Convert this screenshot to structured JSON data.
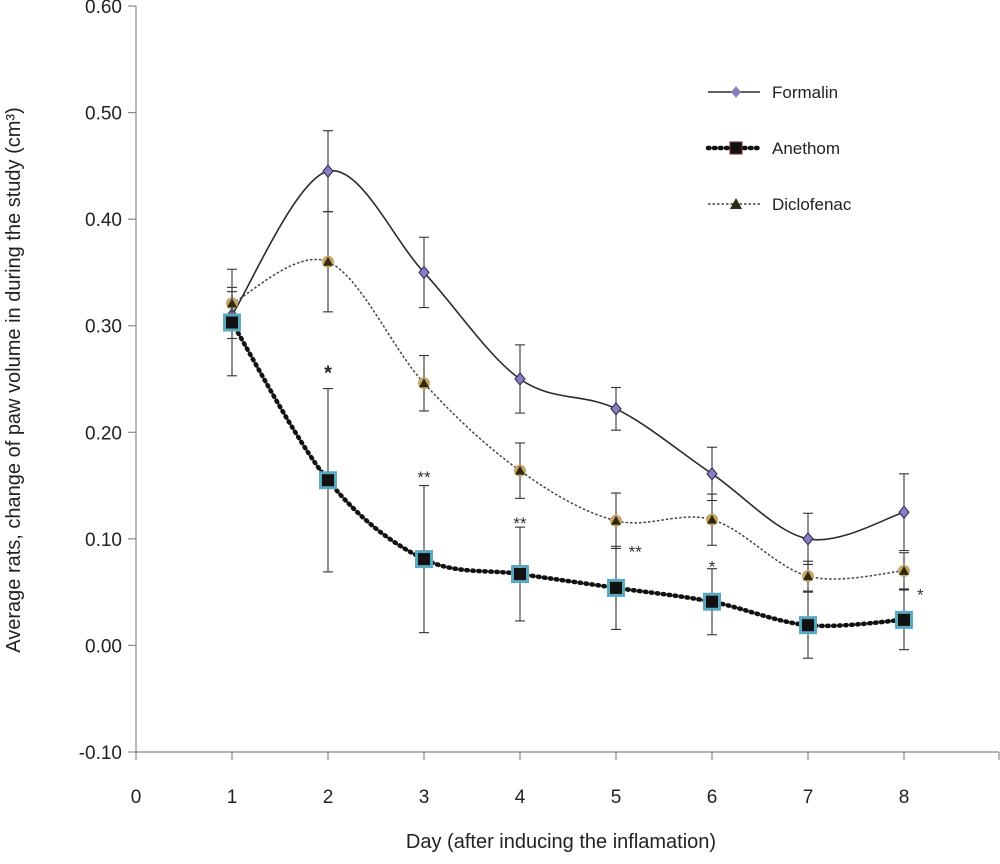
{
  "chart_data": {
    "type": "line",
    "title": "",
    "xlabel": "Day (after inducing the inflamation)",
    "ylabel": "Average rats, change of paw volume in during the study (cm³)",
    "xlim": [
      0,
      9
    ],
    "ylim": [
      -0.1,
      0.6
    ],
    "x_ticks": [
      "0",
      "1",
      "2",
      "3",
      "4",
      "5",
      "6",
      "7",
      "8"
    ],
    "y_ticks": [
      "-0.10",
      "0.00",
      "0.10",
      "0.20",
      "0.30",
      "0.40",
      "0.50",
      "0.60"
    ],
    "y_tick_values": [
      -0.1,
      0.0,
      0.1,
      0.2,
      0.3,
      0.4,
      0.5,
      0.6
    ],
    "grid": false,
    "legend_position": "top-right",
    "x": [
      1,
      2,
      3,
      4,
      5,
      6,
      7,
      8
    ],
    "series": [
      {
        "name": "Formalin",
        "values": [
          0.31,
          0.445,
          0.35,
          0.25,
          0.222,
          0.161,
          0.1,
          0.125
        ],
        "err": [
          0.022,
          0.038,
          0.033,
          0.032,
          0.02,
          0.025,
          0.024,
          0.036
        ],
        "color": "#2b2b2b",
        "marker_color": "#8e7cc3",
        "line_style": "solid",
        "marker": "diamond"
      },
      {
        "name": "Anethom",
        "values": [
          0.303,
          0.155,
          0.081,
          0.067,
          0.054,
          0.041,
          0.019,
          0.024
        ],
        "err": [
          0.05,
          0.086,
          0.069,
          0.044,
          0.039,
          0.031,
          0.031,
          0.028
        ],
        "color": "#111111",
        "marker_color": "#111111",
        "marker_edge": "#5aa7c0",
        "line_style": "dotted-bold",
        "marker": "square"
      },
      {
        "name": "Diclofenac",
        "values": [
          0.321,
          0.36,
          0.246,
          0.164,
          0.117,
          0.118,
          0.065,
          0.07
        ],
        "err": [
          0.015,
          0.047,
          0.026,
          0.026,
          0.026,
          0.024,
          0.014,
          0.017
        ],
        "color": "#444444",
        "marker_color": "#c9a56a",
        "line_style": "dotted-thin",
        "marker": "triangle"
      }
    ],
    "annotations": [
      {
        "text": "*",
        "x": 2,
        "y": 0.255,
        "style": "bold"
      },
      {
        "text": "**",
        "x": 3,
        "y": 0.158,
        "style": "normal"
      },
      {
        "text": "**",
        "x": 4,
        "y": 0.115,
        "style": "normal"
      },
      {
        "text": "**",
        "x": 5.2,
        "y": 0.088,
        "style": "normal"
      },
      {
        "text": "*",
        "x": 6,
        "y": 0.074,
        "style": "normal"
      },
      {
        "text": "*",
        "x": 8.17,
        "y": 0.048,
        "style": "normal"
      }
    ]
  }
}
